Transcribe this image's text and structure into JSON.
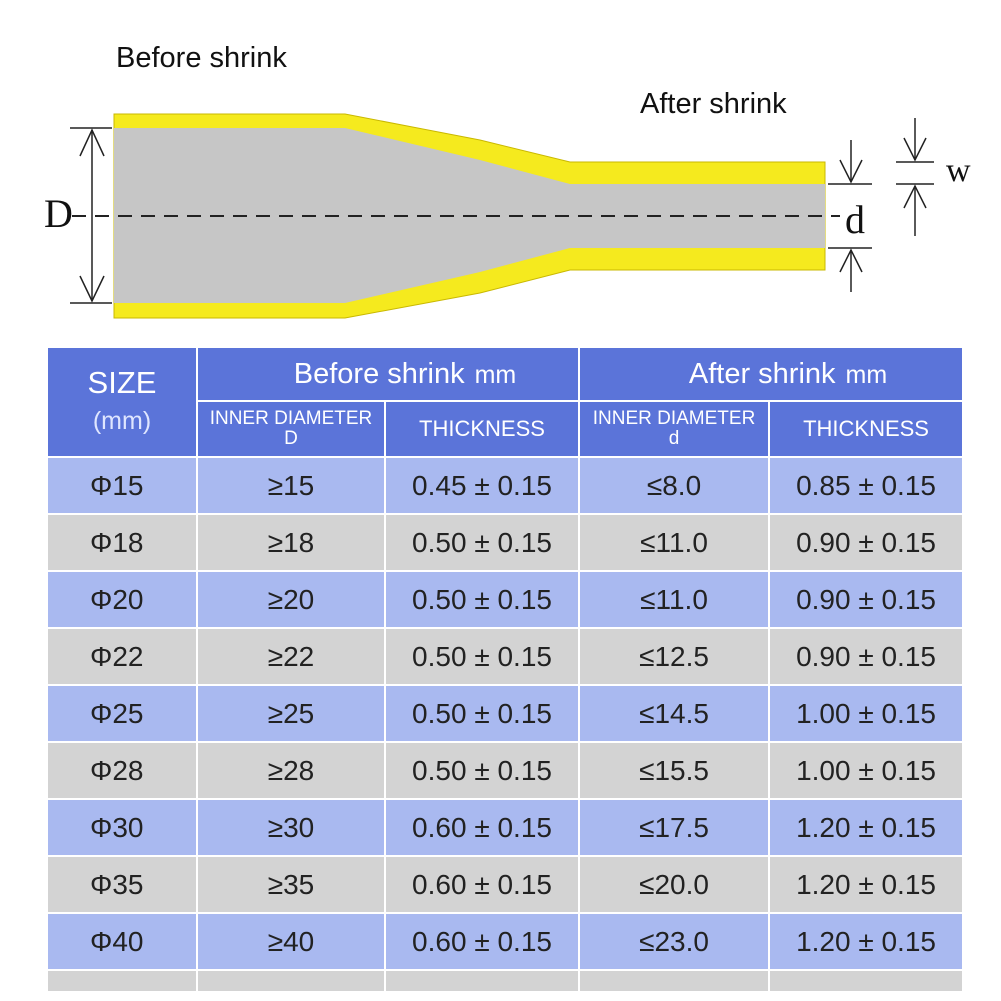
{
  "diagram": {
    "before_label": "Before  shrink",
    "after_label": "After shrink",
    "dim_D": "D",
    "dim_d": "d",
    "dim_w": "w",
    "colors": {
      "tube": "#f5ea1e",
      "core": "#c6c6c6"
    }
  },
  "table": {
    "size_header": "SIZE",
    "size_unit": "(mm)",
    "before_header": "Before  shrink",
    "before_unit": "mm",
    "after_header": "After shrink",
    "after_unit": "mm",
    "before_inner_header": "INNER DIAMETER",
    "before_inner_sym": "D",
    "before_thickness_header": "THICKNESS",
    "after_inner_header": "INNER DIAMETER",
    "after_inner_sym": "d",
    "after_thickness_header": "THICKNESS",
    "colors": {
      "header": "#5b74d9",
      "row_blue": "#a9b9f0",
      "row_grey": "#d3d3d3"
    },
    "rows": [
      {
        "size": "Φ15",
        "before_inner": "≥15",
        "before_thickness": "0.45 ± 0.15",
        "after_inner": "≤8.0",
        "after_thickness": "0.85 ± 0.15"
      },
      {
        "size": "Φ18",
        "before_inner": "≥18",
        "before_thickness": "0.50 ± 0.15",
        "after_inner": "≤11.0",
        "after_thickness": "0.90 ± 0.15"
      },
      {
        "size": "Φ20",
        "before_inner": "≥20",
        "before_thickness": "0.50 ± 0.15",
        "after_inner": "≤11.0",
        "after_thickness": "0.90 ± 0.15"
      },
      {
        "size": "Φ22",
        "before_inner": "≥22",
        "before_thickness": "0.50 ± 0.15",
        "after_inner": "≤12.5",
        "after_thickness": "0.90 ± 0.15"
      },
      {
        "size": "Φ25",
        "before_inner": "≥25",
        "before_thickness": "0.50 ± 0.15",
        "after_inner": "≤14.5",
        "after_thickness": "1.00 ± 0.15"
      },
      {
        "size": "Φ28",
        "before_inner": "≥28",
        "before_thickness": "0.50 ± 0.15",
        "after_inner": "≤15.5",
        "after_thickness": "1.00 ± 0.15"
      },
      {
        "size": "Φ30",
        "before_inner": "≥30",
        "before_thickness": "0.60 ± 0.15",
        "after_inner": "≤17.5",
        "after_thickness": "1.20 ± 0.15"
      },
      {
        "size": "Φ35",
        "before_inner": "≥35",
        "before_thickness": "0.60 ± 0.15",
        "after_inner": "≤20.0",
        "after_thickness": "1.20 ± 0.15"
      },
      {
        "size": "Φ40",
        "before_inner": "≥40",
        "before_thickness": "0.60 ± 0.15",
        "after_inner": "≤23.0",
        "after_thickness": "1.20 ± 0.15"
      }
    ]
  }
}
